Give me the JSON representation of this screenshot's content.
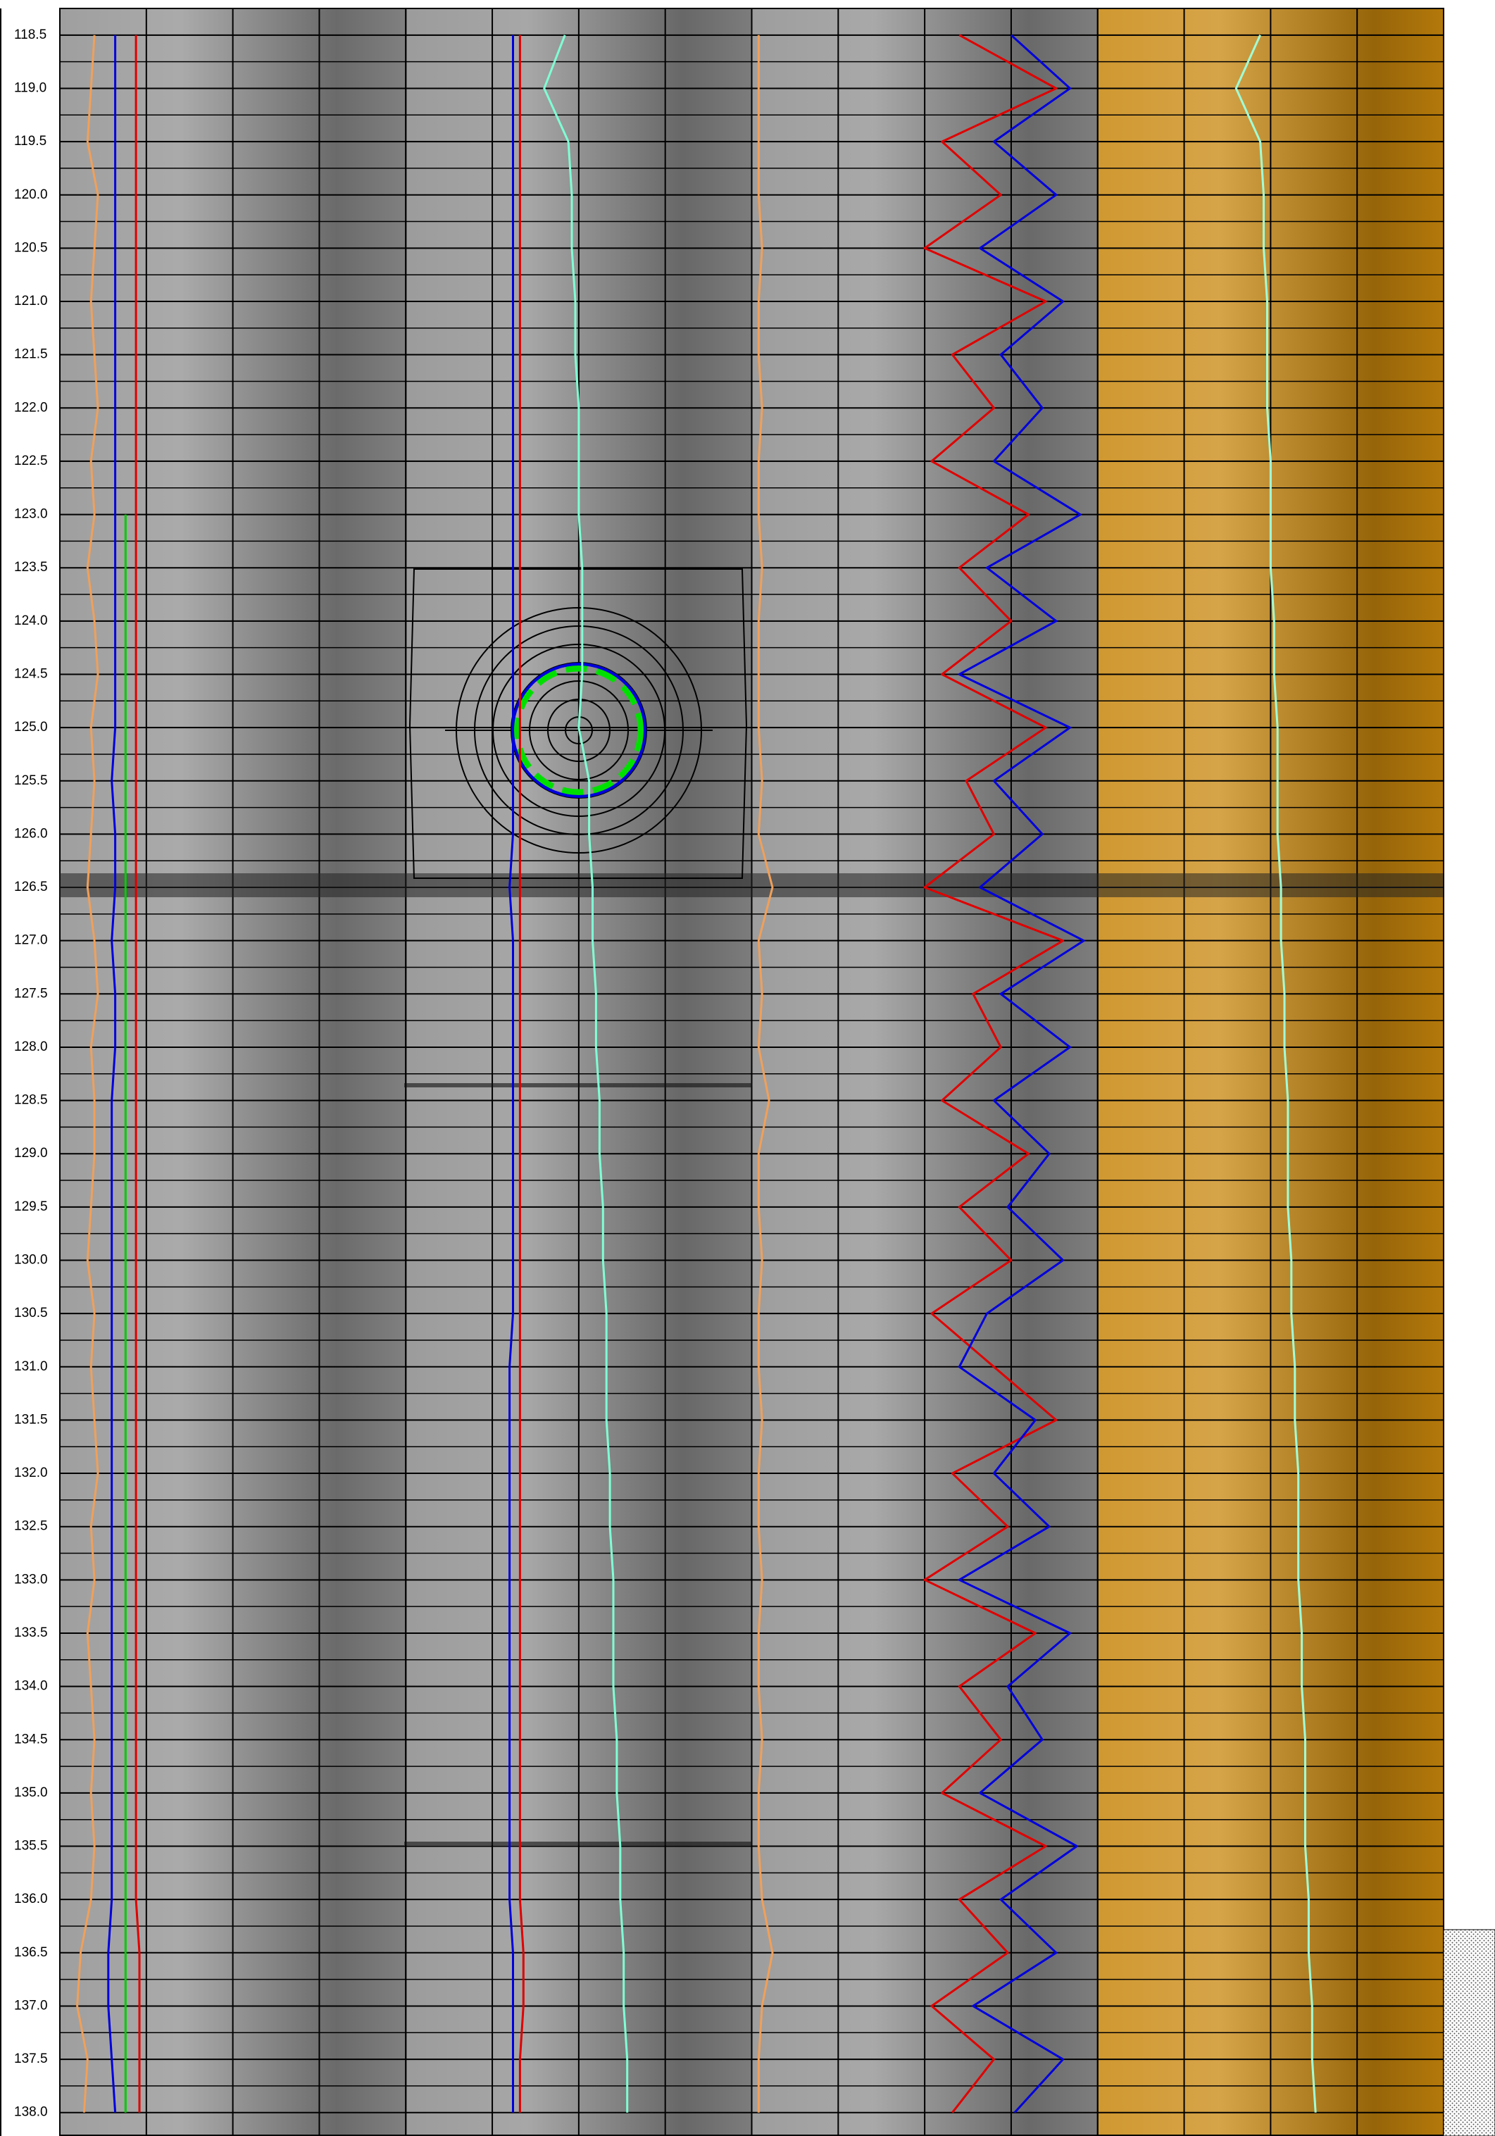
{
  "chart_data": {
    "type": "log",
    "ylim": [
      118.25,
      138.22
    ],
    "yticks": [
      118.5,
      {
        "value": 119,
        "label": "119.0"
      },
      119.5,
      {
        "value": 120,
        "label": "120.0"
      },
      120.5,
      {
        "value": 121,
        "label": "121.0"
      },
      121.5,
      {
        "value": 122,
        "label": "122.0"
      },
      122.5,
      {
        "value": 123,
        "label": "123.0"
      },
      123.5,
      {
        "value": 124,
        "label": "124.0"
      },
      124.5,
      {
        "value": 125,
        "label": "125.0"
      },
      125.5,
      {
        "value": 126,
        "label": "126.0"
      },
      126.5,
      {
        "value": 127,
        "label": "127.0"
      },
      127.5,
      {
        "value": 128,
        "label": "128.0"
      },
      128.5,
      {
        "value": 129,
        "label": "129.0"
      },
      129.5,
      {
        "value": 130,
        "label": "130.0"
      },
      130.5,
      {
        "value": 131,
        "label": "131.0"
      },
      131.5,
      {
        "value": 132,
        "label": "132.0"
      },
      132.5,
      {
        "value": 133,
        "label": "133.0"
      },
      133.5,
      {
        "value": 134,
        "label": "134.0"
      },
      134.5,
      {
        "value": 135,
        "label": "135.0"
      },
      135.5,
      {
        "value": 136,
        "label": "136.0"
      },
      136.5,
      {
        "value": 137,
        "label": "137.0"
      },
      137.5,
      {
        "value": 138,
        "label": "138.0"
      }
    ],
    "minor_grid_step": 0.25,
    "depths": [
      118.5,
      119,
      119.5,
      120,
      120.5,
      121,
      121.5,
      122,
      122.5,
      123,
      123.5,
      124,
      124.5,
      125,
      125.5,
      126,
      126.5,
      127,
      127.5,
      128,
      128.5,
      129,
      129.5,
      130,
      130.5,
      131,
      131.5,
      132,
      132.5,
      133,
      133.5,
      134,
      134.5,
      135,
      135.5,
      136,
      136.5,
      137,
      137.5,
      138
    ],
    "tracks": [
      {
        "color": "#8e8e8e",
        "columns": 4,
        "xlim": [
          0,
          100
        ],
        "series": [
          {
            "color": "#f0a05a",
            "values": [
              10,
              9,
              8,
              11,
              10,
              9,
              10,
              11,
              9,
              10,
              8,
              10,
              11,
              9,
              10,
              9,
              8,
              10,
              11,
              9,
              10,
              10,
              9,
              8,
              10,
              9,
              10,
              11,
              9,
              10,
              8,
              9,
              10,
              9,
              10,
              9,
              6,
              5,
              8,
              7
            ]
          },
          {
            "color": "#0000dd",
            "values": [
              16,
              16,
              16,
              16,
              16,
              16,
              16,
              16,
              16,
              16,
              16,
              16,
              16,
              16,
              15,
              16,
              16,
              15,
              16,
              16,
              15,
              15,
              15,
              15,
              15,
              15,
              15,
              15,
              15,
              15,
              15,
              15,
              15,
              15,
              15,
              15,
              14,
              14,
              15,
              16
            ]
          },
          {
            "color": "#00cc00",
            "values": [
              null,
              null,
              null,
              null,
              null,
              null,
              null,
              null,
              null,
              19,
              19,
              19,
              19,
              19,
              19,
              19,
              19,
              19,
              19,
              19,
              19,
              19,
              19,
              19,
              19,
              19,
              19,
              19,
              19,
              19,
              19,
              19,
              19,
              19,
              19,
              19,
              19,
              19,
              19,
              19
            ]
          },
          {
            "color": "#e00000",
            "values": [
              22,
              22,
              22,
              22,
              22,
              22,
              22,
              22,
              22,
              22,
              22,
              22,
              22,
              22,
              22,
              22,
              22,
              22,
              22,
              22,
              22,
              22,
              22,
              22,
              22,
              22,
              22,
              22,
              22,
              22,
              22,
              22,
              22,
              22,
              22,
              22,
              23,
              23,
              23,
              23
            ]
          }
        ]
      },
      {
        "color": "#8a8a8a",
        "columns": 4,
        "xlim": [
          0,
          100
        ],
        "series": [
          {
            "color": "#0000dd",
            "values": [
              31,
              31,
              31,
              31,
              31,
              31,
              31,
              31,
              31,
              31,
              31,
              31,
              31,
              31,
              31,
              31,
              30,
              31,
              31,
              31,
              31,
              31,
              31,
              31,
              31,
              30,
              30,
              30,
              30,
              30,
              30,
              30,
              30,
              30,
              30,
              30,
              31,
              31,
              31,
              31
            ]
          },
          {
            "color": "#e00000",
            "values": [
              33,
              33,
              33,
              33,
              33,
              33,
              33,
              33,
              33,
              33,
              33,
              33,
              33,
              33,
              33,
              33,
              33,
              33,
              33,
              33,
              33,
              33,
              33,
              33,
              33,
              33,
              33,
              33,
              33,
              33,
              33,
              33,
              33,
              33,
              33,
              33,
              34,
              34,
              33,
              33
            ]
          },
          {
            "color": "#7fffd4",
            "values": [
              46,
              40,
              47,
              48,
              48,
              49,
              49,
              50,
              50,
              50,
              51,
              51,
              51,
              50,
              53,
              53,
              54,
              54,
              55,
              55,
              56,
              56,
              57,
              57,
              58,
              58,
              58,
              59,
              59,
              60,
              60,
              60,
              61,
              61,
              62,
              62,
              63,
              63,
              64,
              64
            ]
          }
        ]
      },
      {
        "color": "#8c8c8c",
        "columns": 4,
        "xlim": [
          0,
          100
        ],
        "series": [
          {
            "color": "#f0a05a",
            "values": [
              2,
              2,
              2,
              2,
              3,
              2,
              2,
              3,
              2,
              2,
              3,
              2,
              2,
              2,
              3,
              2,
              6,
              2,
              3,
              2,
              5,
              2,
              2,
              3,
              2,
              2,
              3,
              2,
              2,
              3,
              2,
              2,
              3,
              2,
              2,
              3,
              6,
              3,
              2,
              2
            ]
          },
          {
            "color": "#e00000",
            "values": [
              60,
              88,
              55,
              72,
              50,
              85,
              58,
              70,
              52,
              80,
              60,
              75,
              55,
              85,
              62,
              70,
              50,
              90,
              64,
              72,
              55,
              80,
              60,
              75,
              52,
              70,
              88,
              58,
              74,
              50,
              82,
              60,
              72,
              55,
              85,
              60,
              74,
              52,
              70,
              58
            ]
          },
          {
            "color": "#0000dd",
            "values": [
              75,
              92,
              70,
              88,
              66,
              90,
              72,
              84,
              70,
              95,
              68,
              88,
              60,
              92,
              70,
              84,
              66,
              96,
              72,
              92,
              70,
              86,
              74,
              90,
              68,
              60,
              82,
              70,
              86,
              60,
              92,
              74,
              84,
              66,
              94,
              72,
              88,
              64,
              90,
              76
            ]
          }
        ]
      },
      {
        "color": "#c8860c",
        "columns": 4,
        "xlim": [
          0,
          100
        ],
        "series": [
          {
            "color": "#a0ffd8",
            "values": [
              47,
              40,
              47,
              48,
              48,
              49,
              49,
              49,
              50,
              50,
              50,
              51,
              51,
              52,
              52,
              52,
              53,
              53,
              54,
              54,
              55,
              55,
              55,
              56,
              56,
              57,
              57,
              58,
              58,
              58,
              59,
              59,
              60,
              60,
              60,
              61,
              61,
              62,
              62,
              63
            ]
          }
        ]
      }
    ]
  }
}
